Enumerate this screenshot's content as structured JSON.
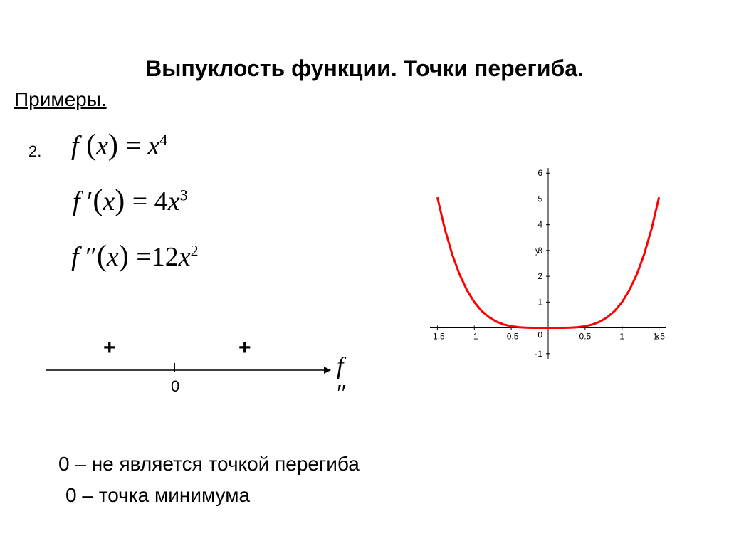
{
  "title": "Выпуклость функции. Точки перегиба.",
  "subtitle": "Примеры.",
  "example_number": "2.",
  "formulas": {
    "f": "f (x) = x⁴",
    "f_prime": "f ′(x) = 4x³",
    "f_double_prime": "f ″(x) = 12x²"
  },
  "sign_line": {
    "left_sign": "+",
    "right_sign": "+",
    "center_value": "0",
    "label": "f ″"
  },
  "conclusion1": "0 – не является точкой перегиба",
  "conclusion2": "0 – точка минимума",
  "chart": {
    "type": "line",
    "xlim": [
      -1.6,
      1.6
    ],
    "ylim": [
      -1.2,
      6.2
    ],
    "xticks": [
      -1.5,
      -1,
      -0.5,
      0,
      0.5,
      1,
      1.5
    ],
    "yticks": [
      -1,
      0,
      1,
      2,
      3,
      4,
      5,
      6
    ],
    "xlabel": "x",
    "ylabel": "y",
    "curve_color": "#ff0000",
    "line_width": 3,
    "background": "#ffffff",
    "axis_color": "#000000",
    "points_x": [
      -1.5,
      -1.4,
      -1.3,
      -1.2,
      -1.1,
      -1.0,
      -0.9,
      -0.8,
      -0.7,
      -0.6,
      -0.5,
      -0.4,
      -0.3,
      -0.2,
      -0.1,
      0,
      0.1,
      0.2,
      0.3,
      0.4,
      0.5,
      0.6,
      0.7,
      0.8,
      0.9,
      1.0,
      1.1,
      1.2,
      1.3,
      1.4,
      1.5
    ],
    "points_y": [
      5.0625,
      3.8416,
      2.8561,
      2.0736,
      1.4641,
      1.0,
      0.6561,
      0.4096,
      0.2401,
      0.1296,
      0.0625,
      0.0256,
      0.0081,
      0.0016,
      0.0001,
      0,
      0.0001,
      0.0016,
      0.0081,
      0.0256,
      0.0625,
      0.1296,
      0.2401,
      0.4096,
      0.6561,
      1.0,
      1.4641,
      2.0736,
      2.8561,
      3.8416,
      5.0625
    ]
  }
}
